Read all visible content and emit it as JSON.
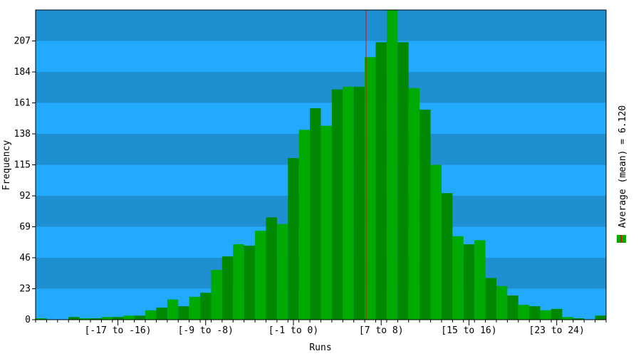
{
  "chart_data": {
    "type": "bar",
    "title": "",
    "xlabel": "Runs",
    "ylabel": "Frequency",
    "legend_label": "Average (mean) = 6.120",
    "legend_placement": "right",
    "mean": 6.12,
    "ylim": [
      0,
      230
    ],
    "yticks": [
      0,
      23,
      46,
      69,
      92,
      115,
      138,
      161,
      184,
      207
    ],
    "x_range": [
      -24,
      28
    ],
    "bin_width": 1,
    "first_bin_start": -24,
    "tick_labels": [
      {
        "label": "[-17 to -16)",
        "start": -17
      },
      {
        "label": "[-9 to -8)",
        "start": -9
      },
      {
        "label": "[-1 to 0)",
        "start": -1
      },
      {
        "label": "[7 to 8)",
        "start": 7
      },
      {
        "label": "[15 to 16)",
        "start": 15
      },
      {
        "label": "[23 to 24)",
        "start": 23
      }
    ],
    "values": [
      1,
      0,
      0,
      2,
      1,
      1,
      2,
      2,
      3,
      3,
      7,
      9,
      15,
      10,
      17,
      20,
      37,
      47,
      56,
      55,
      66,
      76,
      71,
      120,
      141,
      157,
      144,
      171,
      173,
      173,
      195,
      206,
      230,
      206,
      172,
      156,
      115,
      94,
      62,
      56,
      59,
      31,
      25,
      18,
      11,
      10,
      7,
      8,
      2,
      1,
      0,
      3
    ],
    "grid": true,
    "colors": {
      "band_light": "#22aaff",
      "band_dark": "#1e8fd0",
      "bar_light": "#00aa00",
      "bar_dark": "#008800",
      "mean_line": "#ff0000",
      "legend_swatch": "#00aa00",
      "legend_swatch_mark": "#ff0000"
    }
  }
}
